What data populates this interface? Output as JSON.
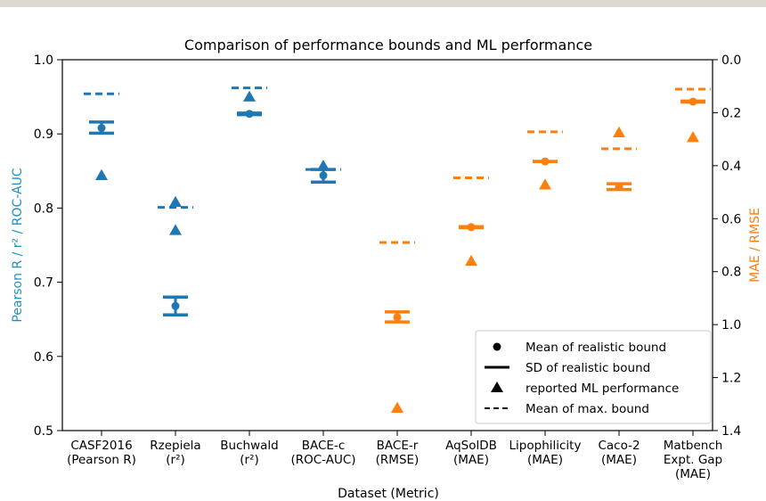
{
  "chart_data": {
    "type": "scatter",
    "title": "Comparison of performance bounds and ML performance",
    "xlabel": "Dataset (Metric)",
    "ylabel_left": "Pearson R / r² / ROC-AUC",
    "ylabel_right": "MAE / RMSE",
    "ylim_left": [
      0.5,
      1.0
    ],
    "ylim_right": [
      0.0,
      1.4
    ],
    "yticks_left": [
      1.0,
      0.9,
      0.8,
      0.7,
      0.6,
      0.5
    ],
    "yticks_right": [
      0.0,
      0.2,
      0.4,
      0.6,
      0.8,
      1.0,
      1.2,
      1.4
    ],
    "categories": [
      {
        "line1": "CASF2016",
        "line2": "(Pearson R)",
        "line3": ""
      },
      {
        "line1": "Rzepiela",
        "line2": "(r²)",
        "line3": ""
      },
      {
        "line1": "Buchwald",
        "line2": "(r²)",
        "line3": ""
      },
      {
        "line1": "BACE-c",
        "line2": "(ROC-AUC)",
        "line3": ""
      },
      {
        "line1": "BACE-r",
        "line2": "(RMSE)",
        "line3": ""
      },
      {
        "line1": "AqSolDB",
        "line2": "(MAE)",
        "line3": ""
      },
      {
        "line1": "Lipophilicity",
        "line2": "(MAE)",
        "line3": ""
      },
      {
        "line1": "Caco-2",
        "line2": "(MAE)",
        "line3": ""
      },
      {
        "line1": "Matbench",
        "line2": "Expt. Gap",
        "line3": "(MAE)"
      }
    ],
    "series": [
      {
        "axis": "left",
        "color": "#1f77b4",
        "mean": 0.908,
        "sd_low": 0.901,
        "sd_high": 0.916,
        "max_bound": 0.954,
        "ml": 0.844
      },
      {
        "axis": "left",
        "color": "#1f77b4",
        "mean": 0.668,
        "sd_low": 0.656,
        "sd_high": 0.68,
        "max_bound": 0.801,
        "ml_values": [
          0.808,
          0.77
        ]
      },
      {
        "axis": "left",
        "color": "#1f77b4",
        "mean": 0.927,
        "sd_low": 0.926,
        "sd_high": 0.928,
        "max_bound": 0.962,
        "ml": 0.95
      },
      {
        "axis": "left",
        "color": "#1f77b4",
        "mean": 0.844,
        "sd_low": 0.835,
        "sd_high": 0.852,
        "max_bound": 0.852,
        "ml": 0.857
      },
      {
        "axis": "right",
        "color": "#ff7f0e",
        "mean": 0.972,
        "sd_low": 0.99,
        "sd_high": 0.952,
        "max_bound": 0.69,
        "ml": 1.315
      },
      {
        "axis": "right",
        "color": "#ff7f0e",
        "mean": 0.632,
        "sd_low": 0.634,
        "sd_high": 0.63,
        "max_bound": 0.446,
        "ml": 0.76
      },
      {
        "axis": "right",
        "color": "#ff7f0e",
        "mean": 0.384,
        "sd_low": 0.384,
        "sd_high": 0.384,
        "max_bound": 0.272,
        "ml": 0.472
      },
      {
        "axis": "right",
        "color": "#ff7f0e",
        "mean": 0.48,
        "sd_low": 0.49,
        "sd_high": 0.468,
        "max_bound": 0.336,
        "ml": 0.275
      },
      {
        "axis": "right",
        "color": "#ff7f0e",
        "mean": 0.158,
        "sd_low": 0.16,
        "sd_high": 0.156,
        "max_bound": 0.111,
        "ml": 0.293
      }
    ],
    "legend": {
      "position": "lower-right",
      "items": [
        {
          "marker": "circle",
          "label": "Mean of realistic bound"
        },
        {
          "marker": "line",
          "label": "SD of realistic bound"
        },
        {
          "marker": "triangle",
          "label": "reported ML performance"
        },
        {
          "marker": "dash",
          "label": "Mean of max. bound"
        }
      ]
    }
  }
}
